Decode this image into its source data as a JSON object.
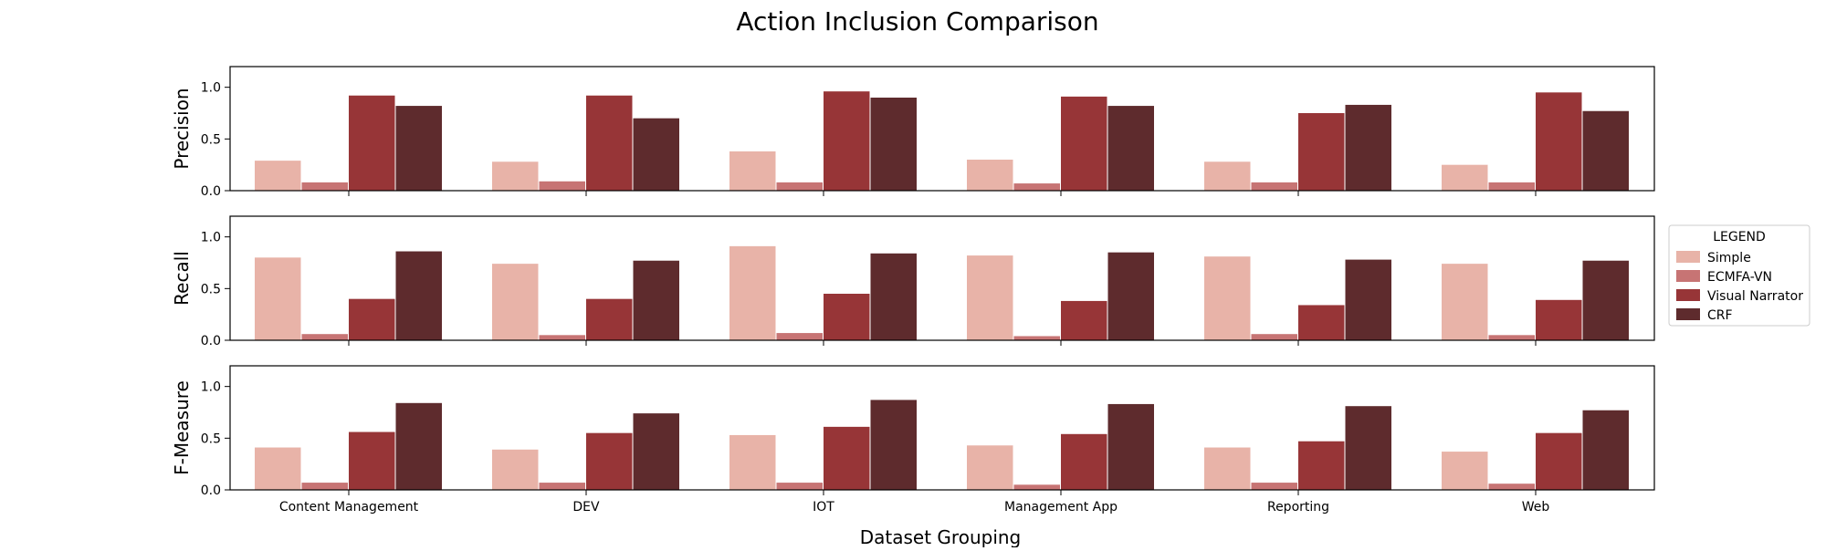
{
  "chart_data": {
    "type": "bar",
    "title": "Action Inclusion Comparison",
    "xlabel": "Dataset Grouping",
    "categories": [
      "Content Management",
      "DEV",
      "IOT",
      "Management App",
      "Reporting",
      "Web"
    ],
    "ylim": [
      0,
      1.2
    ],
    "yticks": [
      "0.0",
      "0.5",
      "1.0"
    ],
    "grid": false,
    "legend": {
      "title": "LEGEND",
      "placement": "right",
      "entries": [
        "Simple",
        "ECMFA-VN",
        "Visual Narrator",
        "CRF"
      ]
    },
    "colors": {
      "Simple": "#e8b3a8",
      "ECMFA-VN": "#c77474",
      "Visual Narrator": "#973537",
      "CRF": "#5e2b2d"
    },
    "panels": [
      {
        "ylabel": "Precision",
        "series": [
          {
            "name": "Simple",
            "values": [
              0.29,
              0.28,
              0.38,
              0.3,
              0.28,
              0.25
            ]
          },
          {
            "name": "ECMFA-VN",
            "values": [
              0.08,
              0.09,
              0.08,
              0.07,
              0.08,
              0.08
            ]
          },
          {
            "name": "Visual Narrator",
            "values": [
              0.92,
              0.92,
              0.96,
              0.91,
              0.75,
              0.95
            ]
          },
          {
            "name": "CRF",
            "values": [
              0.82,
              0.7,
              0.9,
              0.82,
              0.83,
              0.77
            ]
          }
        ]
      },
      {
        "ylabel": "Recall",
        "series": [
          {
            "name": "Simple",
            "values": [
              0.8,
              0.74,
              0.91,
              0.82,
              0.81,
              0.74
            ]
          },
          {
            "name": "ECMFA-VN",
            "values": [
              0.06,
              0.05,
              0.07,
              0.04,
              0.06,
              0.05
            ]
          },
          {
            "name": "Visual Narrator",
            "values": [
              0.4,
              0.4,
              0.45,
              0.38,
              0.34,
              0.39
            ]
          },
          {
            "name": "CRF",
            "values": [
              0.86,
              0.77,
              0.84,
              0.85,
              0.78,
              0.77
            ]
          }
        ]
      },
      {
        "ylabel": "F-Measure",
        "series": [
          {
            "name": "Simple",
            "values": [
              0.41,
              0.39,
              0.53,
              0.43,
              0.41,
              0.37
            ]
          },
          {
            "name": "ECMFA-VN",
            "values": [
              0.07,
              0.07,
              0.07,
              0.05,
              0.07,
              0.06
            ]
          },
          {
            "name": "Visual Narrator",
            "values": [
              0.56,
              0.55,
              0.61,
              0.54,
              0.47,
              0.55
            ]
          },
          {
            "name": "CRF",
            "values": [
              0.84,
              0.74,
              0.87,
              0.83,
              0.81,
              0.77
            ]
          }
        ]
      }
    ]
  }
}
